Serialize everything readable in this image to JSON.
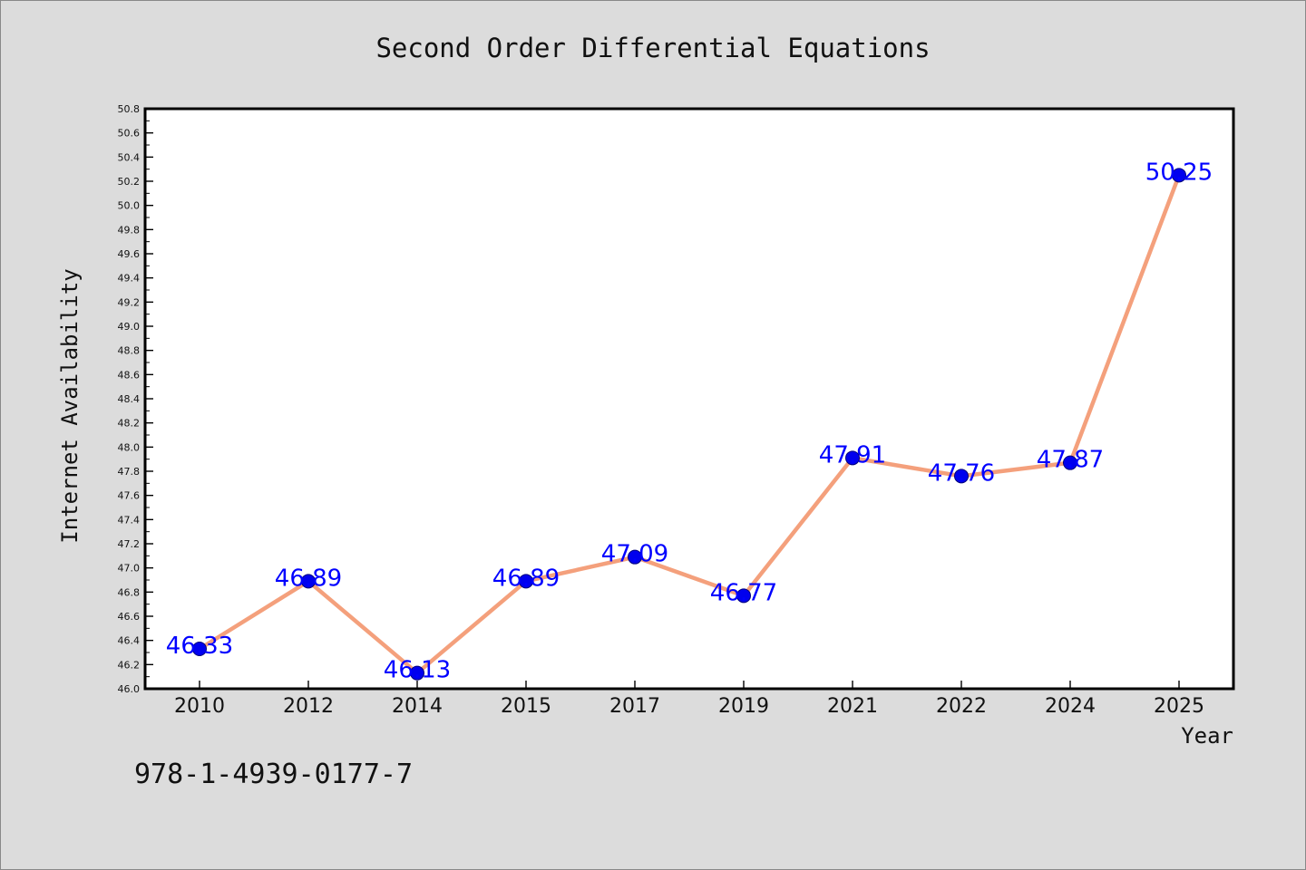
{
  "chart_data": {
    "type": "line",
    "title": "Second Order Differential Equations",
    "xlabel": "Year",
    "ylabel": "Internet Availability",
    "categories": [
      "2010",
      "2012",
      "2014",
      "2015",
      "2017",
      "2019",
      "2021",
      "2022",
      "2024",
      "2025"
    ],
    "series": [
      {
        "values": [
          46.33,
          46.89,
          46.13,
          46.89,
          47.09,
          46.77,
          47.91,
          47.76,
          47.87,
          50.25
        ],
        "data_labels": [
          "46.33",
          "46.89",
          "46.13",
          "46.89",
          "47.09",
          "46.77",
          "47.91",
          "47.76",
          "47.87",
          "50.25"
        ]
      }
    ],
    "ylim": [
      46.0,
      50.8
    ],
    "yticks": [
      "46.0",
      "46.2",
      "46.4",
      "46.6",
      "46.8",
      "47.0",
      "47.2",
      "47.4",
      "47.6",
      "47.8",
      "48.0",
      "48.2",
      "48.4",
      "48.6",
      "48.8",
      "49.0",
      "49.2",
      "49.4",
      "49.6",
      "49.8",
      "50.0",
      "50.2",
      "50.4",
      "50.6",
      "50.8"
    ],
    "grid": false,
    "colors": {
      "line": "#f4a07c",
      "marker": "#0000ee",
      "label": "#0000ff",
      "background": "#dcdcdc",
      "plot_background": "#ffffff"
    },
    "annotation": "978-1-4939-0177-7"
  }
}
